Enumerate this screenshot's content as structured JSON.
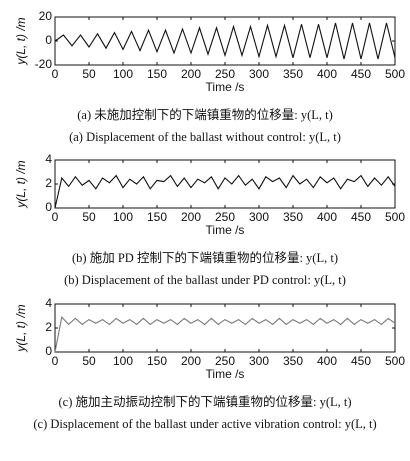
{
  "chart_data": [
    {
      "type": "line",
      "xlabel": "Time /s",
      "ylabel": "y(L, t) /m",
      "caption_zh": "(a) 未施加控制下的下端镇重物的位移量: y(L, t)",
      "caption_en": "(a) Displacement of the ballast without control: y(L, t)",
      "x": [
        0,
        12.5,
        25,
        37.5,
        50,
        62.5,
        75,
        87.5,
        100,
        112.5,
        125,
        137.5,
        150,
        162.5,
        175,
        187.5,
        200,
        212.5,
        225,
        237.5,
        250,
        262.5,
        275,
        287.5,
        300,
        312.5,
        325,
        337.5,
        350,
        362.5,
        375,
        387.5,
        400,
        412.5,
        425,
        437.5,
        450,
        462.5,
        475,
        487.5,
        500
      ],
      "values": [
        0,
        5,
        -4,
        5,
        -5,
        6,
        -6,
        7,
        -7,
        8,
        -8,
        9,
        -9,
        9,
        -10,
        10,
        -10,
        11,
        -11,
        11,
        -12,
        12,
        -12,
        12,
        -13,
        13,
        -13,
        13,
        -14,
        14,
        -14,
        14,
        -14,
        15,
        -15,
        15,
        -15,
        15,
        -15,
        15,
        -14
      ],
      "color": "#111111",
      "xlim": [
        0,
        500
      ],
      "xticks": [
        0,
        50,
        100,
        150,
        200,
        250,
        300,
        350,
        400,
        450,
        500
      ],
      "ylim": [
        -20,
        20
      ],
      "yticks": [
        -20,
        0,
        20
      ]
    },
    {
      "type": "line",
      "xlabel": "Time /s",
      "ylabel": "y(L, t) /m",
      "caption_zh": "(b) 施加 PD 控制下的下端镇重物的位移量: y(L, t)",
      "caption_en": "(b) Displacement of the ballast under PD control: y(L, t)",
      "x": [
        0,
        10,
        20,
        30,
        40,
        50,
        60,
        70,
        80,
        90,
        100,
        110,
        120,
        130,
        140,
        150,
        160,
        170,
        180,
        190,
        200,
        210,
        220,
        230,
        240,
        250,
        260,
        270,
        280,
        290,
        300,
        310,
        320,
        330,
        340,
        350,
        360,
        370,
        380,
        390,
        400,
        410,
        420,
        430,
        440,
        450,
        460,
        470,
        480,
        490,
        500
      ],
      "values": [
        0,
        2.5,
        1.8,
        2.6,
        1.9,
        2.3,
        1.6,
        2.5,
        2.1,
        2.7,
        1.7,
        2.4,
        2.0,
        2.6,
        1.6,
        2.3,
        2.2,
        2.7,
        1.8,
        2.5,
        1.7,
        2.4,
        2.1,
        2.6,
        1.6,
        2.5,
        2.0,
        2.7,
        1.9,
        2.4,
        1.6,
        2.6,
        2.2,
        2.5,
        1.7,
        2.7,
        2.0,
        2.4,
        1.7,
        2.6,
        2.1,
        2.5,
        1.6,
        2.4,
        2.2,
        2.7,
        1.8,
        2.5,
        1.9,
        2.6,
        1.8
      ],
      "color": "#111111",
      "xlim": [
        0,
        500
      ],
      "xticks": [
        0,
        50,
        100,
        150,
        200,
        250,
        300,
        350,
        400,
        450,
        500
      ],
      "ylim": [
        0,
        4
      ],
      "yticks": [
        0,
        2,
        4
      ]
    },
    {
      "type": "line",
      "xlabel": "Time /s",
      "ylabel": "y(L, t) /m",
      "caption_zh": "(c) 施加主动振动控制下的下端镇重物的位移量: y(L, t)",
      "caption_en": "(c) Displacement of the ballast under active vibration control: y(L, t)",
      "x": [
        0,
        10,
        20,
        30,
        40,
        50,
        60,
        70,
        80,
        90,
        100,
        110,
        120,
        130,
        140,
        150,
        160,
        170,
        180,
        190,
        200,
        210,
        220,
        230,
        240,
        250,
        260,
        270,
        280,
        290,
        300,
        310,
        320,
        330,
        340,
        350,
        360,
        370,
        380,
        390,
        400,
        410,
        420,
        430,
        440,
        450,
        460,
        470,
        480,
        490,
        500
      ],
      "values": [
        0,
        2.9,
        2.3,
        2.8,
        2.3,
        2.7,
        2.4,
        2.7,
        2.3,
        2.8,
        2.4,
        2.7,
        2.3,
        2.8,
        2.3,
        2.7,
        2.4,
        2.7,
        2.3,
        2.8,
        2.4,
        2.7,
        2.3,
        2.8,
        2.3,
        2.7,
        2.4,
        2.7,
        2.3,
        2.8,
        2.4,
        2.7,
        2.3,
        2.8,
        2.3,
        2.7,
        2.4,
        2.7,
        2.3,
        2.8,
        2.4,
        2.7,
        2.3,
        2.8,
        2.3,
        2.7,
        2.4,
        2.7,
        2.3,
        2.8,
        2.4
      ],
      "color": "#777777",
      "xlim": [
        0,
        500
      ],
      "xticks": [
        0,
        50,
        100,
        150,
        200,
        250,
        300,
        350,
        400,
        450,
        500
      ],
      "ylim": [
        0,
        4
      ],
      "yticks": [
        0,
        2,
        4
      ]
    }
  ]
}
